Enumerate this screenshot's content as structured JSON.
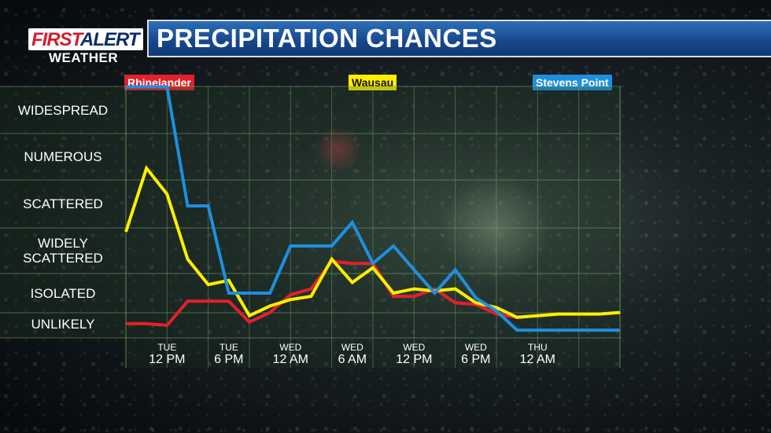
{
  "header": {
    "logo_first": "FIRST",
    "logo_alert": "ALERT",
    "logo_weather": "WEATHER",
    "title": "PRECIPITATION CHANCES"
  },
  "colors": {
    "rhinelander": "#e3202b",
    "wausau": "#ffee00",
    "stevens_point": "#1e8fe0",
    "title_bar": "#17468b"
  },
  "chart_data": {
    "type": "line",
    "title": "PRECIPITATION CHANCES",
    "categories": [
      "WIDESPREAD",
      "NUMEROUS",
      "SCATTERED",
      "WIDELY SCATTERED",
      "ISOLATED",
      "UNLIKELY"
    ],
    "y_levels": [
      {
        "label": "UNLIKELY",
        "lines": [
          "UNLIKELY"
        ]
      },
      {
        "label": "ISOLATED",
        "lines": [
          "ISOLATED"
        ]
      },
      {
        "label": "WIDELY SCATTERED",
        "lines": [
          "WIDELY",
          "SCATTERED"
        ]
      },
      {
        "label": "SCATTERED",
        "lines": [
          "SCATTERED"
        ]
      },
      {
        "label": "NUMEROUS",
        "lines": [
          "NUMEROUS"
        ]
      },
      {
        "label": "WIDESPREAD",
        "lines": [
          "WIDESPREAD"
        ]
      }
    ],
    "x_ticks": [
      {
        "day": "TUE",
        "time": "12 PM",
        "hour": 12
      },
      {
        "day": "TUE",
        "time": "6 PM",
        "hour": 18
      },
      {
        "day": "WED",
        "time": "12 AM",
        "hour": 24
      },
      {
        "day": "WED",
        "time": "6 AM",
        "hour": 30
      },
      {
        "day": "WED",
        "time": "12 PM",
        "hour": 36
      },
      {
        "day": "WED",
        "time": "6 PM",
        "hour": 42
      },
      {
        "day": "THU",
        "time": "12 AM",
        "hour": 48
      }
    ],
    "x_range": [
      8,
      56
    ],
    "y_range": [
      0,
      6
    ],
    "grid": true,
    "series": [
      {
        "name": "Rhinelander",
        "key": "rhinelander",
        "x": [
          8,
          10,
          12,
          14,
          16,
          18,
          20,
          22,
          24,
          26,
          28,
          30,
          32,
          34,
          36,
          38,
          40,
          42,
          44,
          46,
          48,
          50,
          52,
          54,
          56
        ],
        "y": [
          0.05,
          0.05,
          0.0,
          0.75,
          0.75,
          0.75,
          0.1,
          0.4,
          0.95,
          1.1,
          1.75,
          1.7,
          1.7,
          0.9,
          0.9,
          1.1,
          0.7,
          0.65,
          0.35,
          0.25,
          0.3,
          0.35,
          0.35,
          0.35,
          0.4
        ]
      },
      {
        "name": "Wausau",
        "key": "wausau",
        "x": [
          8,
          10,
          12,
          14,
          16,
          18,
          20,
          22,
          24,
          26,
          28,
          30,
          32,
          34,
          36,
          38,
          40,
          42,
          44,
          46,
          48,
          50,
          52,
          54,
          56
        ],
        "y": [
          2.4,
          3.75,
          3.2,
          1.8,
          1.2,
          1.3,
          0.3,
          0.6,
          0.8,
          0.9,
          1.8,
          1.25,
          1.6,
          1.0,
          1.1,
          1.05,
          1.1,
          0.7,
          0.55,
          0.25,
          0.3,
          0.35,
          0.35,
          0.35,
          0.4
        ]
      },
      {
        "name": "Stevens Point",
        "key": "stevens_point",
        "x": [
          8,
          10,
          12,
          14,
          16,
          18,
          20,
          22,
          24,
          26,
          28,
          30,
          32,
          34,
          36,
          38,
          40,
          42,
          44,
          46,
          48,
          50,
          52,
          54,
          56
        ],
        "y": [
          5.5,
          5.5,
          5.5,
          2.95,
          2.95,
          1.0,
          1.0,
          1.0,
          2.1,
          2.1,
          2.1,
          2.6,
          1.7,
          2.1,
          1.55,
          1.0,
          1.55,
          0.85,
          0.45,
          -0.15,
          -0.15,
          -0.15,
          -0.15,
          -0.15,
          -0.15
        ]
      }
    ]
  }
}
